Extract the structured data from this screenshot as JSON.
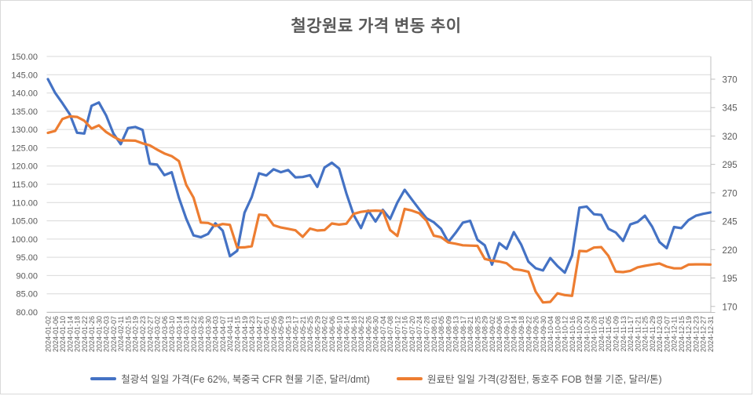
{
  "title": "철강원료 가격 변동 추이",
  "chart_data": {
    "type": "line",
    "title": "철강원료 가격 변동 추이",
    "grid": true,
    "legend_position": "bottom",
    "left_axis": {
      "min": 80,
      "max": 150,
      "step": 5,
      "labels": [
        "150.00",
        "145.00",
        "140.00",
        "135.00",
        "130.00",
        "125.00",
        "120.00",
        "115.00",
        "110.00",
        "105.00",
        "100.00",
        "95.00",
        "90.00",
        "85.00",
        "80.00"
      ]
    },
    "right_axis": {
      "min": 165,
      "max": 390,
      "step": 25,
      "labels": [
        "370",
        "345",
        "320",
        "295",
        "270",
        "245",
        "220",
        "195",
        "170"
      ]
    },
    "categories": [
      "2024-01-02",
      "2024-01-06",
      "2024-01-10",
      "2024-01-14",
      "2024-01-18",
      "2024-01-22",
      "2024-01-26",
      "2024-01-30",
      "2024-02-03",
      "2024-02-07",
      "2024-02-11",
      "2024-02-15",
      "2024-02-19",
      "2024-02-23",
      "2024-02-27",
      "2024-03-02",
      "2024-03-06",
      "2024-03-10",
      "2024-03-14",
      "2024-03-18",
      "2024-03-22",
      "2024-03-26",
      "2024-03-30",
      "2024-04-03",
      "2024-04-07",
      "2024-04-11",
      "2024-04-15",
      "2024-04-19",
      "2024-04-23",
      "2024-04-27",
      "2024-05-01",
      "2024-05-05",
      "2024-05-09",
      "2024-05-13",
      "2024-05-17",
      "2024-05-21",
      "2024-05-25",
      "2024-05-29",
      "2024-06-02",
      "2024-06-06",
      "2024-06-10",
      "2024-06-14",
      "2024-06-18",
      "2024-06-22",
      "2024-06-26",
      "2024-06-30",
      "2024-07-04",
      "2024-07-08",
      "2024-07-12",
      "2024-07-16",
      "2024-07-20",
      "2024-07-24",
      "2024-07-28",
      "2024-08-01",
      "2024-08-05",
      "2024-08-09",
      "2024-08-13",
      "2024-08-17",
      "2024-08-21",
      "2024-08-25",
      "2024-08-29",
      "2024-09-02",
      "2024-09-06",
      "2024-09-10",
      "2024-09-14",
      "2024-09-18",
      "2024-09-22",
      "2024-09-26",
      "2024-09-30",
      "2024-10-04",
      "2024-10-08",
      "2024-10-12",
      "2024-10-16",
      "2024-10-20",
      "2024-10-24",
      "2024-10-28",
      "2024-11-01",
      "2024-11-05",
      "2024-11-09",
      "2024-11-13",
      "2024-11-17",
      "2024-11-21",
      "2024-11-25",
      "2024-11-29",
      "2024-12-03",
      "2024-12-07",
      "2024-12-11",
      "2024-12-15",
      "2024-12-19",
      "2024-12-23",
      "2024-12-27",
      "2024-12-31"
    ],
    "series": [
      {
        "name": "철광석 일일 가격(Fe 62%, 북중국 CFR 현물 기준, 달러/dmt)",
        "axis": "left",
        "color": "#4472C4",
        "values": [
          143.8,
          140.0,
          137.2,
          134.2,
          129.1,
          128.9,
          136.5,
          137.4,
          133.8,
          128.9,
          126.0,
          130.4,
          130.7,
          129.9,
          120.6,
          120.4,
          117.5,
          118.3,
          111.3,
          105.6,
          101.0,
          100.5,
          101.4,
          104.3,
          102.3,
          95.3,
          96.8,
          107.2,
          111.5,
          118.0,
          117.4,
          119.1,
          118.3,
          118.9,
          116.9,
          117.0,
          117.5,
          114.3,
          119.6,
          120.9,
          119.3,
          112.5,
          106.6,
          103.0,
          107.8,
          104.8,
          108.0,
          105.5,
          110.0,
          113.5,
          110.8,
          108.2,
          105.7,
          104.6,
          102.8,
          99.2,
          101.7,
          104.5,
          105.0,
          99.8,
          98.3,
          93.0,
          98.9,
          97.3,
          101.9,
          98.5,
          93.8,
          92.0,
          91.4,
          94.8,
          92.6,
          90.8,
          95.5,
          108.6,
          108.9,
          106.8,
          106.6,
          102.8,
          101.8,
          99.5,
          104.0,
          104.7,
          106.4,
          103.4,
          99.2,
          97.5,
          103.3,
          103.0,
          105.2,
          106.4,
          106.9,
          107.3
        ]
      },
      {
        "name": "원료탄 일일 가격(강점탄, 동호주 FOB 현물 기준, 달러/톤)",
        "axis": "right",
        "color": "#ED7D31",
        "values": [
          322.8,
          324.5,
          335.0,
          337.3,
          336.8,
          333.5,
          326.5,
          329.3,
          323.5,
          319.4,
          316.1,
          316.1,
          315.9,
          313.5,
          311.7,
          308.0,
          304.6,
          302.3,
          297.9,
          277.0,
          265.8,
          243.8,
          243.5,
          240.8,
          242.5,
          241.8,
          221.8,
          222.0,
          223.0,
          250.8,
          250.2,
          241.5,
          239.5,
          238.3,
          237.0,
          231.2,
          238.5,
          236.8,
          237.2,
          243.0,
          242.0,
          242.8,
          251.5,
          253.2,
          254.0,
          254.3,
          254.0,
          237.2,
          232.0,
          255.8,
          254.3,
          252.0,
          245.5,
          232.3,
          231.0,
          226.3,
          225.2,
          223.8,
          223.5,
          223.3,
          211.8,
          210.3,
          209.5,
          208.0,
          202.8,
          202.0,
          200.5,
          183.0,
          173.5,
          174.0,
          181.5,
          180.0,
          179.3,
          218.8,
          218.5,
          221.8,
          222.2,
          214.4,
          200.6,
          200.2,
          201.3,
          204.4,
          205.7,
          206.8,
          207.8,
          205.0,
          203.5,
          203.5,
          206.8,
          207.0,
          207.0,
          206.8
        ]
      }
    ],
    "colors": {
      "grid": "#D9D9D9",
      "axis": "#BFBFBF",
      "text": "#595959"
    }
  }
}
